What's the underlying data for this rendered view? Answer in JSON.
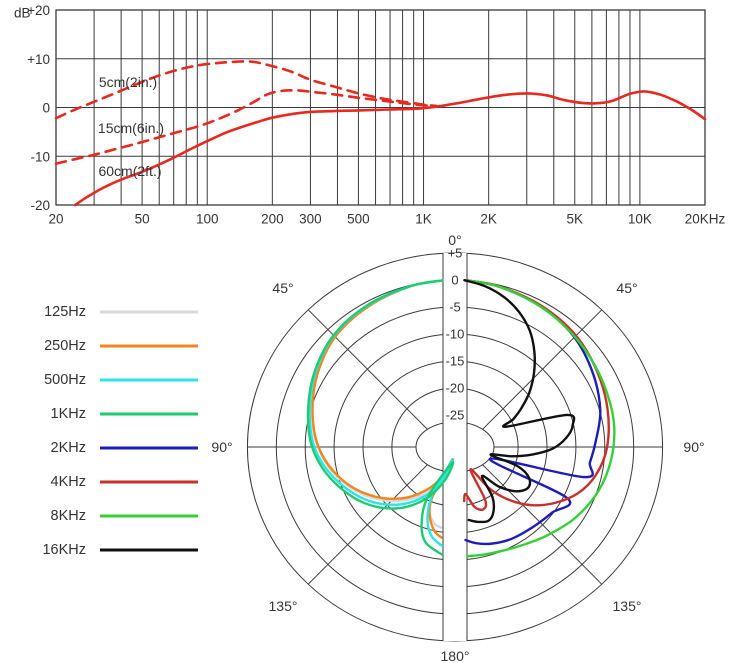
{
  "figure": {
    "background": "#ffffff",
    "grid_color": "#3a3a3a",
    "text_color": "#333333"
  },
  "chart_data": [
    {
      "id": "frequency_response",
      "type": "line",
      "title": "",
      "x_axis": {
        "scale": "log",
        "unit": "Hz",
        "min": 20,
        "max": 20000,
        "tick_labels": [
          {
            "f": 20,
            "label": "20"
          },
          {
            "f": 50,
            "label": "50"
          },
          {
            "f": 100,
            "label": "100"
          },
          {
            "f": 200,
            "label": "200"
          },
          {
            "f": 300,
            "label": "300"
          },
          {
            "f": 500,
            "label": "500"
          },
          {
            "f": 1000,
            "label": "1K"
          },
          {
            "f": 2000,
            "label": "2K"
          },
          {
            "f": 5000,
            "label": "5K"
          },
          {
            "f": 10000,
            "label": "10K"
          },
          {
            "f": 20000,
            "label": "20KHz"
          }
        ],
        "grid_freqs": [
          20,
          30,
          40,
          50,
          60,
          70,
          80,
          90,
          100,
          200,
          300,
          400,
          500,
          600,
          700,
          800,
          900,
          1000,
          2000,
          3000,
          4000,
          5000,
          6000,
          7000,
          8000,
          9000,
          10000,
          20000
        ]
      },
      "y_axis": {
        "unit": "dB",
        "min": -20,
        "max": 20,
        "ticks": [
          20,
          10,
          0,
          -10,
          -20
        ],
        "tick_labels": [
          "+20",
          "+10",
          "0",
          "-10",
          "-20"
        ]
      },
      "curve_color": "#e8291f",
      "series": [
        {
          "name": "5cm(2in.)",
          "line": "dashed",
          "label_pos": [
            128,
            82
          ],
          "points": [
            [
              20,
              -2.2
            ],
            [
              24,
              -0.6
            ],
            [
              29,
              0.9
            ],
            [
              36,
              2.6
            ],
            [
              45,
              4.4
            ],
            [
              56,
              6.1
            ],
            [
              70,
              7.5
            ],
            [
              85,
              8.4
            ],
            [
              100,
              8.9
            ],
            [
              125,
              9.3
            ],
            [
              160,
              9.4
            ],
            [
              200,
              8.5
            ],
            [
              250,
              7.2
            ],
            [
              300,
              5.7
            ],
            [
              400,
              4.1
            ],
            [
              500,
              2.9
            ],
            [
              650,
              1.8
            ],
            [
              800,
              1.2
            ],
            [
              1000,
              0.6
            ],
            [
              1150,
              0.3
            ]
          ]
        },
        {
          "name": "15cm(6in.)",
          "line": "dashed",
          "label_pos": [
            131,
            128
          ],
          "points": [
            [
              20,
              -11.5
            ],
            [
              25,
              -10.5
            ],
            [
              30,
              -9.7
            ],
            [
              38,
              -8.5
            ],
            [
              48,
              -7.3
            ],
            [
              60,
              -6.1
            ],
            [
              75,
              -4.9
            ],
            [
              95,
              -3.6
            ],
            [
              115,
              -2.2
            ],
            [
              140,
              -0.5
            ],
            [
              165,
              1.2
            ],
            [
              190,
              2.7
            ],
            [
              220,
              3.4
            ],
            [
              260,
              3.5
            ],
            [
              320,
              3.1
            ],
            [
              400,
              2.6
            ],
            [
              500,
              2.0
            ],
            [
              650,
              1.4
            ],
            [
              800,
              0.9
            ],
            [
              1000,
              0.45
            ],
            [
              1150,
              0.25
            ]
          ]
        },
        {
          "name": "60cm(2ft.)",
          "line": "solid",
          "label_pos": [
            130,
            171
          ],
          "points": [
            [
              24.5,
              -20
            ],
            [
              28,
              -18.3
            ],
            [
              33,
              -16.5
            ],
            [
              40,
              -14.8
            ],
            [
              50,
              -13.2
            ],
            [
              60,
              -11.7
            ],
            [
              70,
              -10.3
            ],
            [
              85,
              -8.4
            ],
            [
              100,
              -6.9
            ],
            [
              120,
              -5.3
            ],
            [
              140,
              -4.2
            ],
            [
              170,
              -3.0
            ],
            [
              200,
              -2.1
            ],
            [
              250,
              -1.3
            ],
            [
              300,
              -0.9
            ],
            [
              400,
              -0.7
            ],
            [
              500,
              -0.6
            ],
            [
              700,
              -0.4
            ],
            [
              1000,
              -0.15
            ],
            [
              1400,
              0.8
            ],
            [
              1800,
              1.7
            ],
            [
              2300,
              2.5
            ],
            [
              3000,
              2.9
            ],
            [
              3700,
              2.5
            ],
            [
              4500,
              1.5
            ],
            [
              5500,
              0.9
            ],
            [
              6500,
              0.9
            ],
            [
              7500,
              1.4
            ],
            [
              9000,
              2.8
            ],
            [
              10500,
              3.3
            ],
            [
              12500,
              2.6
            ],
            [
              15000,
              1.1
            ],
            [
              17500,
              -0.6
            ],
            [
              20000,
              -2.4
            ]
          ]
        }
      ]
    },
    {
      "id": "polar_pattern",
      "type": "line",
      "polar": true,
      "radial_axis": {
        "unit": "dB",
        "max": 5,
        "min": -25,
        "step": -5,
        "tick_labels": [
          "+5",
          "0",
          "-5",
          "-10",
          "-15",
          "-20",
          "-25"
        ]
      },
      "angle_labels": {
        "top": "0°",
        "bottom": "180°",
        "diag_upper": "45°",
        "side": "90°",
        "diag_lower": "135°"
      },
      "layout_note": "left half: 125Hz-1KHz, right half: 2KHz-16KHz, legend at left",
      "series": [
        {
          "name": "125Hz",
          "color": "#d8d8d8",
          "side": "left",
          "points_deg_db": [
            [
              4,
              0
            ],
            [
              15,
              -0.2
            ],
            [
              30,
              -0.8
            ],
            [
              45,
              -1.7
            ],
            [
              60,
              -3.4
            ],
            [
              75,
              -5.2
            ],
            [
              90,
              -7.2
            ],
            [
              105,
              -9.8
            ],
            [
              120,
              -13
            ],
            [
              135,
              -16.8
            ],
            [
              148,
              -20.5
            ],
            [
              158,
              -24
            ],
            [
              166,
              -28
            ],
            [
              157,
              -20.5
            ],
            [
              160,
              -18
            ],
            [
              166,
              -16.3
            ],
            [
              171,
              -15.8
            ]
          ]
        },
        {
          "name": "250Hz",
          "color": "#f5841e",
          "side": "left",
          "points_deg_db": [
            [
              4,
              0
            ],
            [
              15,
              -0.2
            ],
            [
              30,
              -0.9
            ],
            [
              45,
              -1.8
            ],
            [
              60,
              -3.5
            ],
            [
              75,
              -5.4
            ],
            [
              90,
              -7.3
            ],
            [
              105,
              -10
            ],
            [
              120,
              -13.4
            ],
            [
              135,
              -17.4
            ],
            [
              148,
              -21.5
            ],
            [
              160,
              -25.5
            ],
            [
              168,
              -28.5
            ],
            [
              157,
              -21
            ],
            [
              161,
              -17.5
            ],
            [
              167,
              -15
            ],
            [
              172,
              -14
            ]
          ]
        },
        {
          "name": "500Hz",
          "color": "#29e5e5",
          "side": "left",
          "points_deg_db": [
            [
              4,
              0
            ],
            [
              15,
              -0.2
            ],
            [
              30,
              -0.7
            ],
            [
              45,
              -1.5
            ],
            [
              60,
              -3.1
            ],
            [
              75,
              -4.9
            ],
            [
              90,
              -6.6
            ],
            [
              105,
              -9.2
            ],
            [
              122,
              -12.6
            ],
            [
              138,
              -16.6
            ],
            [
              152,
              -21
            ],
            [
              163,
              -25.5
            ],
            [
              170,
              -28.5
            ],
            [
              156,
              -21.5
            ],
            [
              160,
              -17
            ],
            [
              166,
              -14
            ],
            [
              173,
              -12.5
            ]
          ]
        },
        {
          "name": "1KHz",
          "color": "#1fcb72",
          "side": "left",
          "points_deg_db": [
            [
              4,
              0
            ],
            [
              15,
              -0.15
            ],
            [
              30,
              -0.6
            ],
            [
              45,
              -1.4
            ],
            [
              60,
              -2.9
            ],
            [
              75,
              -4.6
            ],
            [
              90,
              -6.2
            ],
            [
              105,
              -8.6
            ],
            [
              122,
              -11.8
            ],
            [
              138,
              -15.6
            ],
            [
              152,
              -20
            ],
            [
              164,
              -24.5
            ],
            [
              171,
              -28
            ],
            [
              153,
              -20.5
            ],
            [
              158,
              -15.5
            ],
            [
              164,
              -12.5
            ],
            [
              174,
              -10.8
            ]
          ]
        },
        {
          "name": "2KHz",
          "color": "#1d1db8",
          "side": "right",
          "points_deg_db": [
            [
              4,
              0
            ],
            [
              15,
              -0.3
            ],
            [
              30,
              -1
            ],
            [
              45,
              -1.9
            ],
            [
              60,
              -3.4
            ],
            [
              75,
              -4.9
            ],
            [
              88,
              -6.6
            ],
            [
              97,
              -7.4
            ],
            [
              104,
              -7.9
            ],
            [
              110,
              -24.5
            ],
            [
              116,
              -9.3
            ],
            [
              126,
              -10.2
            ],
            [
              138,
              -10.9
            ],
            [
              150,
              -11.3
            ],
            [
              160,
              -11.9
            ],
            [
              168,
              -12.7
            ],
            [
              174,
              -13.6
            ]
          ]
        },
        {
          "name": "4KHz",
          "color": "#c8302a",
          "side": "right",
          "points_deg_db": [
            [
              4,
              0
            ],
            [
              15,
              -0.25
            ],
            [
              30,
              -0.8
            ],
            [
              45,
              -1.5
            ],
            [
              60,
              -2.6
            ],
            [
              75,
              -3.6
            ],
            [
              90,
              -4.6
            ],
            [
              102,
              -6
            ],
            [
              112,
              -8
            ],
            [
              121,
              -10.8
            ],
            [
              129,
              -13.8
            ],
            [
              136,
              -17.2
            ],
            [
              142,
              -21
            ],
            [
              147,
              -26
            ],
            [
              152,
              -19.8
            ],
            [
              157,
              -18.4
            ],
            [
              163,
              -19.3
            ],
            [
              168,
              -22
            ],
            [
              171,
              -20.8
            ]
          ]
        },
        {
          "name": "8KHz",
          "color": "#34d034",
          "side": "right",
          "points_deg_db": [
            [
              4,
              0
            ],
            [
              15,
              -0.3
            ],
            [
              30,
              -1
            ],
            [
              45,
              -1.8
            ],
            [
              58,
              -2.4
            ],
            [
              70,
              -2.8
            ],
            [
              82,
              -3.1
            ],
            [
              95,
              -3.8
            ],
            [
              108,
              -4.8
            ],
            [
              122,
              -6.3
            ],
            [
              136,
              -8.1
            ],
            [
              148,
              -9.4
            ],
            [
              158,
              -10.1
            ],
            [
              166,
              -10.4
            ],
            [
              174,
              -10.6
            ]
          ]
        },
        {
          "name": "16KHz",
          "color": "#111111",
          "side": "right",
          "points_deg_db": [
            [
              3,
              0
            ],
            [
              10,
              -0.7
            ],
            [
              17,
              -1.9
            ],
            [
              24,
              -3.6
            ],
            [
              31,
              -5.8
            ],
            [
              38,
              -8.6
            ],
            [
              45,
              -11.6
            ],
            [
              52,
              -14.6
            ],
            [
              58,
              -17.4
            ],
            [
              63,
              -19.6
            ],
            [
              67,
              -21.3
            ],
            [
              73,
              -10.6
            ],
            [
              79,
              -10.2
            ],
            [
              85,
              -11.6
            ],
            [
              91,
              -14
            ],
            [
              96,
              -17.5
            ],
            [
              100,
              -21
            ],
            [
              103,
              -24.6
            ],
            [
              108,
              -19.6
            ],
            [
              114,
              -16.9
            ],
            [
              121,
              -16.2
            ],
            [
              128,
              -17.6
            ],
            [
              134,
              -20.4
            ],
            [
              139,
              -23.8
            ],
            [
              145,
              -19.6
            ],
            [
              151,
              -17.2
            ],
            [
              157,
              -16.1
            ],
            [
              164,
              -16.5
            ],
            [
              170,
              -17.2
            ]
          ]
        }
      ]
    }
  ]
}
